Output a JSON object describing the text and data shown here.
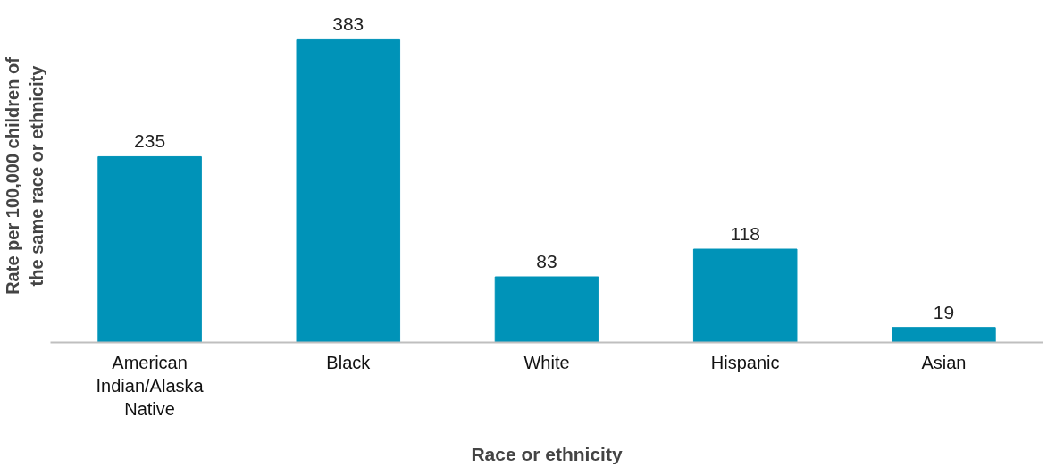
{
  "chart_data": {
    "type": "bar",
    "xlabel": "Race or ethnicity",
    "ylabel": "Rate per 100,000 children of the same race or ethnicity",
    "categories": [
      "American Indian/Alaska Native",
      "Black",
      "White",
      "Hispanic",
      "Asian"
    ],
    "values": [
      235,
      383,
      83,
      118,
      19
    ],
    "color": "#0093b8",
    "data_labels": true,
    "grid": false
  }
}
